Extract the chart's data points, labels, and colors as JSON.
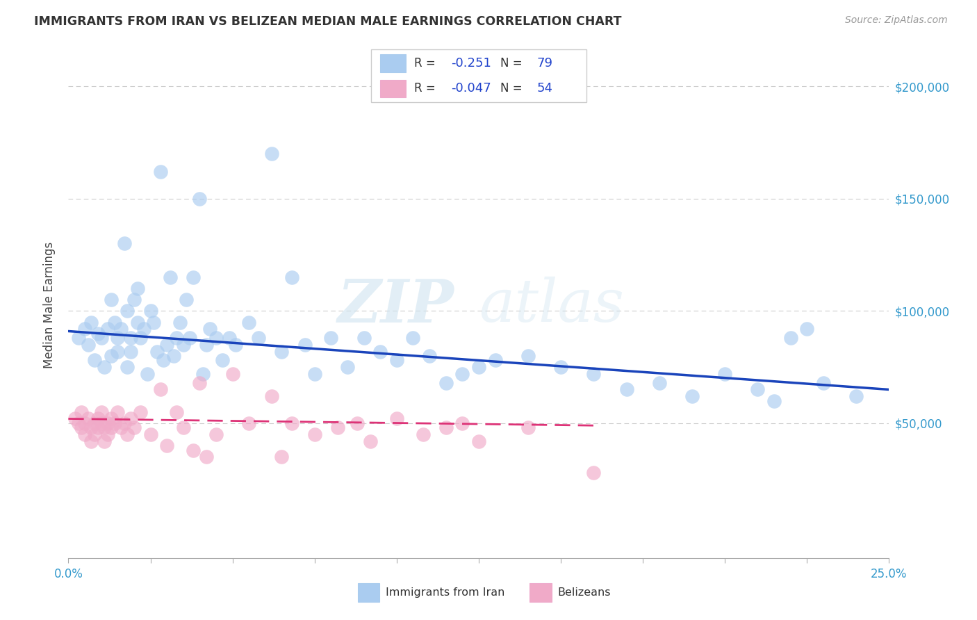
{
  "title": "IMMIGRANTS FROM IRAN VS BELIZEAN MEDIAN MALE EARNINGS CORRELATION CHART",
  "source": "Source: ZipAtlas.com",
  "ylabel": "Median Male Earnings",
  "yticks": [
    0,
    50000,
    100000,
    150000,
    200000
  ],
  "ytick_labels": [
    "",
    "$50,000",
    "$100,000",
    "$150,000",
    "$200,000"
  ],
  "xlim": [
    0.0,
    0.25
  ],
  "ylim": [
    -10000,
    215000
  ],
  "legend_iran_R": "-0.251",
  "legend_iran_N": "79",
  "legend_beliz_R": "-0.047",
  "legend_beliz_N": "54",
  "iran_color": "#aaccf0",
  "beliz_color": "#f0aac8",
  "iran_line_color": "#1a44bb",
  "beliz_line_color": "#dd3377",
  "watermark_zip": "ZIP",
  "watermark_atlas": "atlas",
  "iran_scatter_x": [
    0.003,
    0.005,
    0.006,
    0.007,
    0.008,
    0.009,
    0.01,
    0.011,
    0.012,
    0.013,
    0.013,
    0.014,
    0.015,
    0.015,
    0.016,
    0.017,
    0.018,
    0.018,
    0.019,
    0.019,
    0.02,
    0.021,
    0.021,
    0.022,
    0.023,
    0.024,
    0.025,
    0.026,
    0.027,
    0.028,
    0.029,
    0.03,
    0.031,
    0.032,
    0.033,
    0.034,
    0.035,
    0.036,
    0.037,
    0.038,
    0.04,
    0.041,
    0.042,
    0.043,
    0.045,
    0.047,
    0.049,
    0.051,
    0.055,
    0.058,
    0.062,
    0.065,
    0.068,
    0.072,
    0.075,
    0.08,
    0.085,
    0.09,
    0.095,
    0.1,
    0.105,
    0.11,
    0.115,
    0.12,
    0.125,
    0.13,
    0.14,
    0.15,
    0.16,
    0.17,
    0.18,
    0.19,
    0.2,
    0.21,
    0.215,
    0.22,
    0.225,
    0.23,
    0.24
  ],
  "iran_scatter_y": [
    88000,
    92000,
    85000,
    95000,
    78000,
    90000,
    88000,
    75000,
    92000,
    80000,
    105000,
    95000,
    82000,
    88000,
    92000,
    130000,
    100000,
    75000,
    82000,
    88000,
    105000,
    95000,
    110000,
    88000,
    92000,
    72000,
    100000,
    95000,
    82000,
    162000,
    78000,
    85000,
    115000,
    80000,
    88000,
    95000,
    85000,
    105000,
    88000,
    115000,
    150000,
    72000,
    85000,
    92000,
    88000,
    78000,
    88000,
    85000,
    95000,
    88000,
    170000,
    82000,
    115000,
    85000,
    72000,
    88000,
    75000,
    88000,
    82000,
    78000,
    88000,
    80000,
    68000,
    72000,
    75000,
    78000,
    80000,
    75000,
    72000,
    65000,
    68000,
    62000,
    72000,
    65000,
    60000,
    88000,
    92000,
    68000,
    62000
  ],
  "beliz_scatter_x": [
    0.002,
    0.003,
    0.004,
    0.004,
    0.005,
    0.005,
    0.006,
    0.007,
    0.007,
    0.008,
    0.008,
    0.009,
    0.009,
    0.01,
    0.01,
    0.011,
    0.011,
    0.012,
    0.012,
    0.013,
    0.013,
    0.014,
    0.015,
    0.016,
    0.017,
    0.018,
    0.019,
    0.02,
    0.022,
    0.025,
    0.028,
    0.03,
    0.033,
    0.035,
    0.038,
    0.04,
    0.042,
    0.045,
    0.05,
    0.055,
    0.062,
    0.065,
    0.068,
    0.075,
    0.082,
    0.088,
    0.092,
    0.1,
    0.108,
    0.115,
    0.12,
    0.125,
    0.14,
    0.16
  ],
  "beliz_scatter_y": [
    52000,
    50000,
    48000,
    55000,
    50000,
    45000,
    52000,
    48000,
    42000,
    50000,
    45000,
    52000,
    48000,
    50000,
    55000,
    48000,
    42000,
    50000,
    45000,
    52000,
    48000,
    50000,
    55000,
    48000,
    50000,
    45000,
    52000,
    48000,
    55000,
    45000,
    65000,
    40000,
    55000,
    48000,
    38000,
    68000,
    35000,
    45000,
    72000,
    50000,
    62000,
    35000,
    50000,
    45000,
    48000,
    50000,
    42000,
    52000,
    45000,
    48000,
    50000,
    42000,
    48000,
    28000
  ],
  "iran_line_x0": 0.0,
  "iran_line_y0": 91000,
  "iran_line_x1": 0.25,
  "iran_line_y1": 65000,
  "beliz_line_x0": 0.0,
  "beliz_line_y0": 52000,
  "beliz_line_x1": 0.16,
  "beliz_line_y1": 49000
}
